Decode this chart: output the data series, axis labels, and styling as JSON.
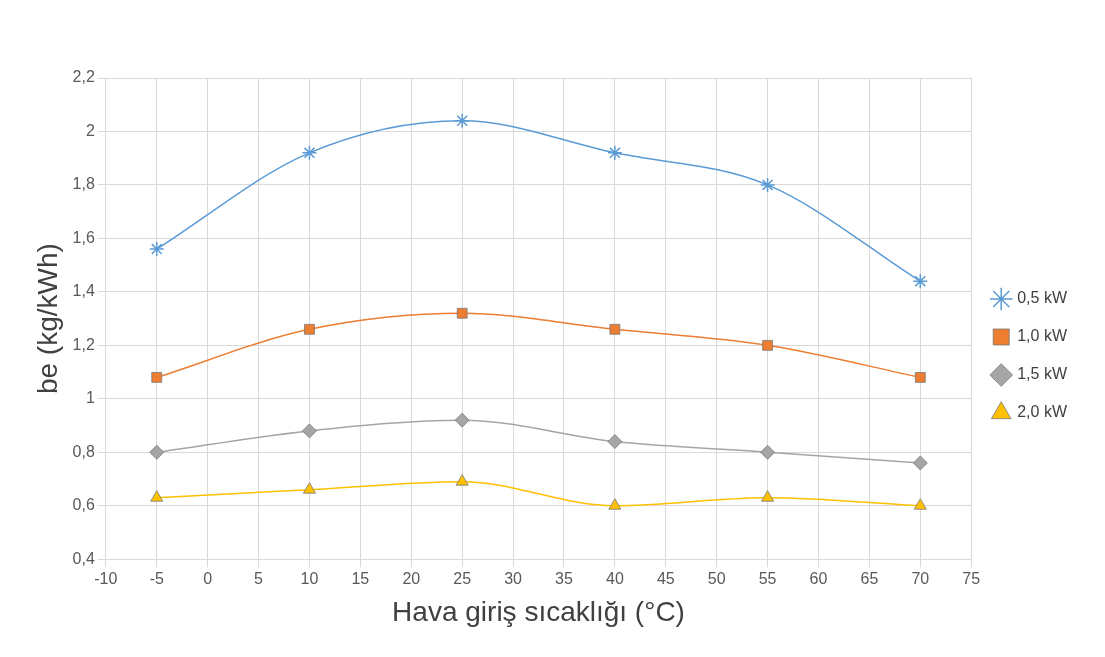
{
  "chart_data": {
    "type": "line",
    "xlabel": "Hava giriş sıcaklığı (°C)",
    "ylabel": "be (kg/kWh)",
    "x": [
      -5,
      10,
      25,
      40,
      55,
      70
    ],
    "series": [
      {
        "name": "0,5 kW",
        "color": "#5b9bd5",
        "marker": "cross",
        "values": [
          1.56,
          1.92,
          2.04,
          1.92,
          1.8,
          1.44
        ]
      },
      {
        "name": "1,0 kW",
        "color": "#ed7d31",
        "marker": "square",
        "values": [
          1.08,
          1.26,
          1.32,
          1.26,
          1.2,
          1.08
        ]
      },
      {
        "name": "1,5 kW",
        "color": "#a5a5a5",
        "marker": "diamond",
        "values": [
          0.8,
          0.88,
          0.92,
          0.84,
          0.8,
          0.76
        ]
      },
      {
        "name": "2,0 kW",
        "color": "#ffc000",
        "marker": "triangle",
        "values": [
          0.63,
          0.66,
          0.69,
          0.6,
          0.63,
          0.6
        ]
      }
    ],
    "xlim": [
      -10,
      75
    ],
    "xticks": [
      -10,
      -5,
      0,
      5,
      10,
      15,
      20,
      25,
      30,
      35,
      40,
      45,
      50,
      55,
      60,
      65,
      70,
      75
    ],
    "ylim": [
      0.4,
      2.2
    ],
    "yticks": [
      {
        "value": 0.4,
        "label": "0,4"
      },
      {
        "value": 0.6,
        "label": "0,6"
      },
      {
        "value": 0.8,
        "label": "0,8"
      },
      {
        "value": 1,
        "label": "1"
      },
      {
        "value": 1.2,
        "label": "1,2"
      },
      {
        "value": 1.4,
        "label": "1,4"
      },
      {
        "value": 1.6,
        "label": "1,6"
      },
      {
        "value": 1.8,
        "label": "1,8"
      },
      {
        "value": 2,
        "label": "2"
      },
      {
        "value": 2.2,
        "label": "2,2"
      }
    ],
    "grid": true,
    "legend": "right",
    "line_style": "solid"
  }
}
